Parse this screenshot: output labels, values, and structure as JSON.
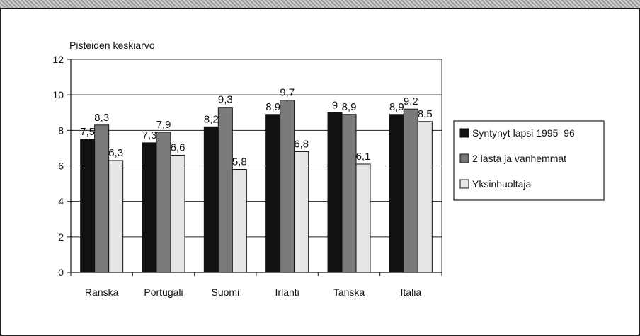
{
  "chart_data": {
    "type": "bar",
    "ylabel": "Pisteiden keskiarvo",
    "ylim": [
      0,
      12
    ],
    "yticks": [
      0,
      2,
      4,
      6,
      8,
      10,
      12
    ],
    "grid": true,
    "legend_position": "right",
    "categories": [
      "Ranska",
      "Portugali",
      "Suomi",
      "Irlanti",
      "Tanska",
      "Italia"
    ],
    "series": [
      {
        "name": "Syntynyt lapsi 1995–96",
        "color": "#111111",
        "values": [
          7.5,
          7.3,
          8.2,
          8.9,
          9,
          8.9
        ],
        "labels": [
          "7,5",
          "7,3",
          "8,2",
          "8,9",
          "9",
          "8,9"
        ]
      },
      {
        "name": "2 lasta ja vanhemmat",
        "color": "#7a7a7a",
        "values": [
          8.3,
          7.9,
          9.3,
          9.7,
          8.9,
          9.2
        ],
        "labels": [
          "8,3",
          "7,9",
          "9,3",
          "9,7",
          "8,9",
          "9,2"
        ]
      },
      {
        "name": "Yksinhuoltaja",
        "color": "#e6e6e6",
        "values": [
          6.3,
          6.6,
          5.8,
          6.8,
          6.1,
          8.5
        ],
        "labels": [
          "6,3",
          "6,6",
          "5,8",
          "6,8",
          "6,1",
          "8,5"
        ]
      }
    ]
  }
}
